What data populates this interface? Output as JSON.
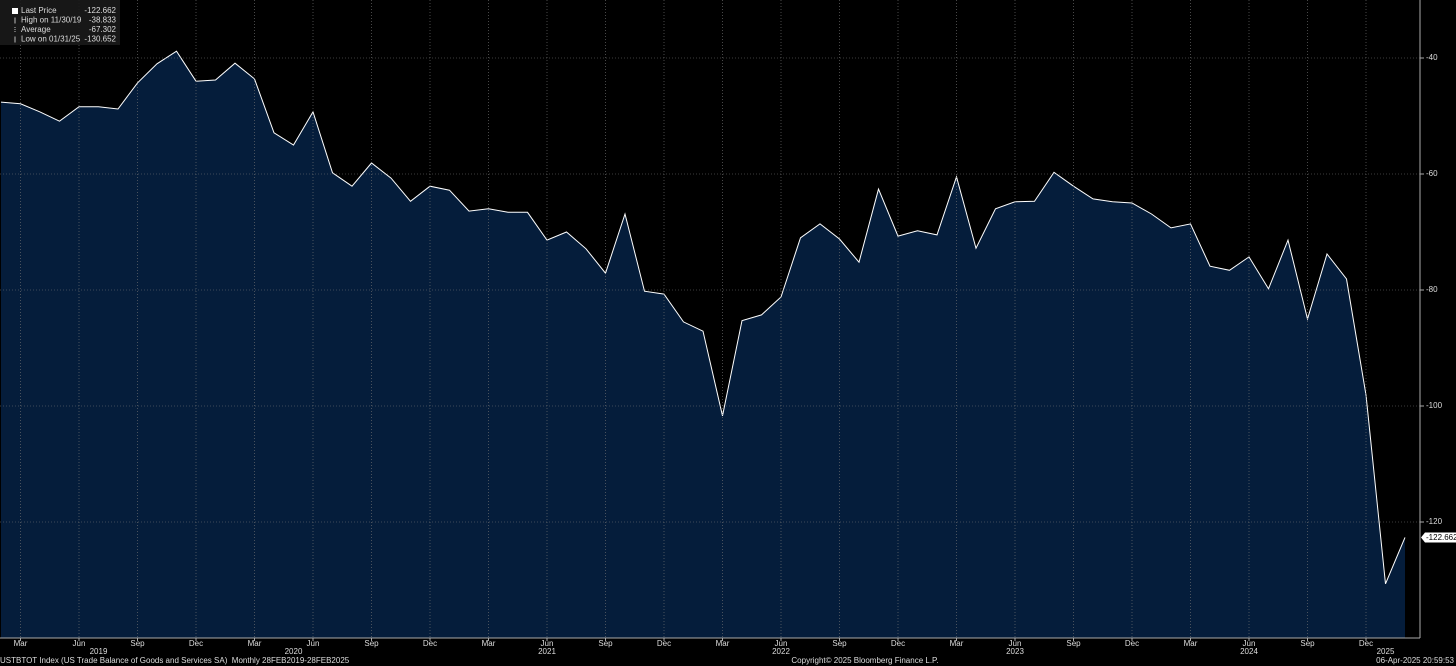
{
  "chart_data": {
    "type": "area",
    "x": [
      "2019-02",
      "2019-03",
      "2019-04",
      "2019-05",
      "2019-06",
      "2019-07",
      "2019-08",
      "2019-09",
      "2019-10",
      "2019-11",
      "2019-12",
      "2020-01",
      "2020-02",
      "2020-03",
      "2020-04",
      "2020-05",
      "2020-06",
      "2020-07",
      "2020-08",
      "2020-09",
      "2020-10",
      "2020-11",
      "2020-12",
      "2021-01",
      "2021-02",
      "2021-03",
      "2021-04",
      "2021-05",
      "2021-06",
      "2021-07",
      "2021-08",
      "2021-09",
      "2021-10",
      "2021-11",
      "2021-12",
      "2022-01",
      "2022-02",
      "2022-03",
      "2022-04",
      "2022-05",
      "2022-06",
      "2022-07",
      "2022-08",
      "2022-09",
      "2022-10",
      "2022-11",
      "2022-12",
      "2023-01",
      "2023-02",
      "2023-03",
      "2023-04",
      "2023-05",
      "2023-06",
      "2023-07",
      "2023-08",
      "2023-09",
      "2023-10",
      "2023-11",
      "2023-12",
      "2024-01",
      "2024-02",
      "2024-03",
      "2024-04",
      "2024-05",
      "2024-06",
      "2024-07",
      "2024-08",
      "2024-09",
      "2024-10",
      "2024-11",
      "2024-12",
      "2025-01",
      "2025-02"
    ],
    "series": [
      {
        "name": "Last Price",
        "color": "#ffffff",
        "fill": "#051d3b",
        "values": [
          -47.6,
          -47.9,
          -49.3,
          -50.9,
          -48.4,
          -48.4,
          -48.8,
          -44.3,
          -41.0,
          -38.833,
          -44.0,
          -43.8,
          -40.9,
          -43.6,
          -52.9,
          -55.0,
          -49.3,
          -59.8,
          -62.1,
          -58.1,
          -60.7,
          -64.7,
          -62.1,
          -62.8,
          -66.4,
          -66.0,
          -66.6,
          -66.6,
          -71.4,
          -70.0,
          -72.9,
          -77.1,
          -66.9,
          -80.2,
          -80.7,
          -85.5,
          -87.1,
          -101.7,
          -85.3,
          -84.3,
          -81.2,
          -71.0,
          -68.6,
          -71.2,
          -75.2,
          -62.6,
          -70.7,
          -69.8,
          -70.5,
          -60.5,
          -72.8,
          -66.0,
          -64.8,
          -64.7,
          -59.7,
          -62.1,
          -64.3,
          -64.8,
          -65.0,
          -66.9,
          -69.3,
          -68.6,
          -75.9,
          -76.6,
          -74.3,
          -79.8,
          -71.4,
          -85.0,
          -73.8,
          -78.1,
          -98.1,
          -130.652,
          -122.662
        ]
      }
    ],
    "ylim": [
      -140,
      -30
    ],
    "yticks": [
      -40,
      -60,
      -80,
      -100,
      -120
    ],
    "grid": true,
    "xticks": [
      {
        "value": "2019-03",
        "label": "Mar"
      },
      {
        "value": "2019-06",
        "label": "Jun"
      },
      {
        "value": "2019-09",
        "label": "Sep"
      },
      {
        "value": "2019-12",
        "label": "Dec"
      },
      {
        "value": "2020-03",
        "label": "Mar"
      },
      {
        "value": "2020-06",
        "label": "Jun"
      },
      {
        "value": "2020-09",
        "label": "Sep"
      },
      {
        "value": "2020-12",
        "label": "Dec"
      },
      {
        "value": "2021-03",
        "label": "Mar"
      },
      {
        "value": "2021-06",
        "label": "Jun"
      },
      {
        "value": "2021-09",
        "label": "Sep"
      },
      {
        "value": "2021-12",
        "label": "Dec"
      },
      {
        "value": "2022-03",
        "label": "Mar"
      },
      {
        "value": "2022-06",
        "label": "Jun"
      },
      {
        "value": "2022-09",
        "label": "Sep"
      },
      {
        "value": "2022-12",
        "label": "Dec"
      },
      {
        "value": "2023-03",
        "label": "Mar"
      },
      {
        "value": "2023-06",
        "label": "Jun"
      },
      {
        "value": "2023-09",
        "label": "Sep"
      },
      {
        "value": "2023-12",
        "label": "Dec"
      },
      {
        "value": "2024-03",
        "label": "Mar"
      },
      {
        "value": "2024-06",
        "label": "Jun"
      },
      {
        "value": "2024-09",
        "label": "Sep"
      },
      {
        "value": "2024-12",
        "label": "Dec"
      }
    ],
    "year_labels": [
      {
        "value": "2019-07",
        "label": "2019"
      },
      {
        "value": "2020-05",
        "label": "2020"
      },
      {
        "value": "2021-06",
        "label": "2021"
      },
      {
        "value": "2022-06",
        "label": "2022"
      },
      {
        "value": "2023-06",
        "label": "2023"
      },
      {
        "value": "2024-06",
        "label": "2024"
      },
      {
        "value": "2025-01",
        "label": "2025"
      }
    ],
    "legend": [
      {
        "label": "Last Price",
        "value": -122.662
      },
      {
        "label": "High on 11/30/19",
        "value": -38.833
      },
      {
        "label": "Average",
        "value": -67.302
      },
      {
        "label": "Low on 01/31/25",
        "value": -130.652
      }
    ],
    "footer": {
      "left": "USTBTOT Index (US Trade Balance of Goods and Services SA)  Monthly 28FEB2019-28FEB2025",
      "center": "Copyright© 2025 Bloomberg Finance L.P.",
      "right": "06-Apr-2025 20:59:53"
    }
  }
}
